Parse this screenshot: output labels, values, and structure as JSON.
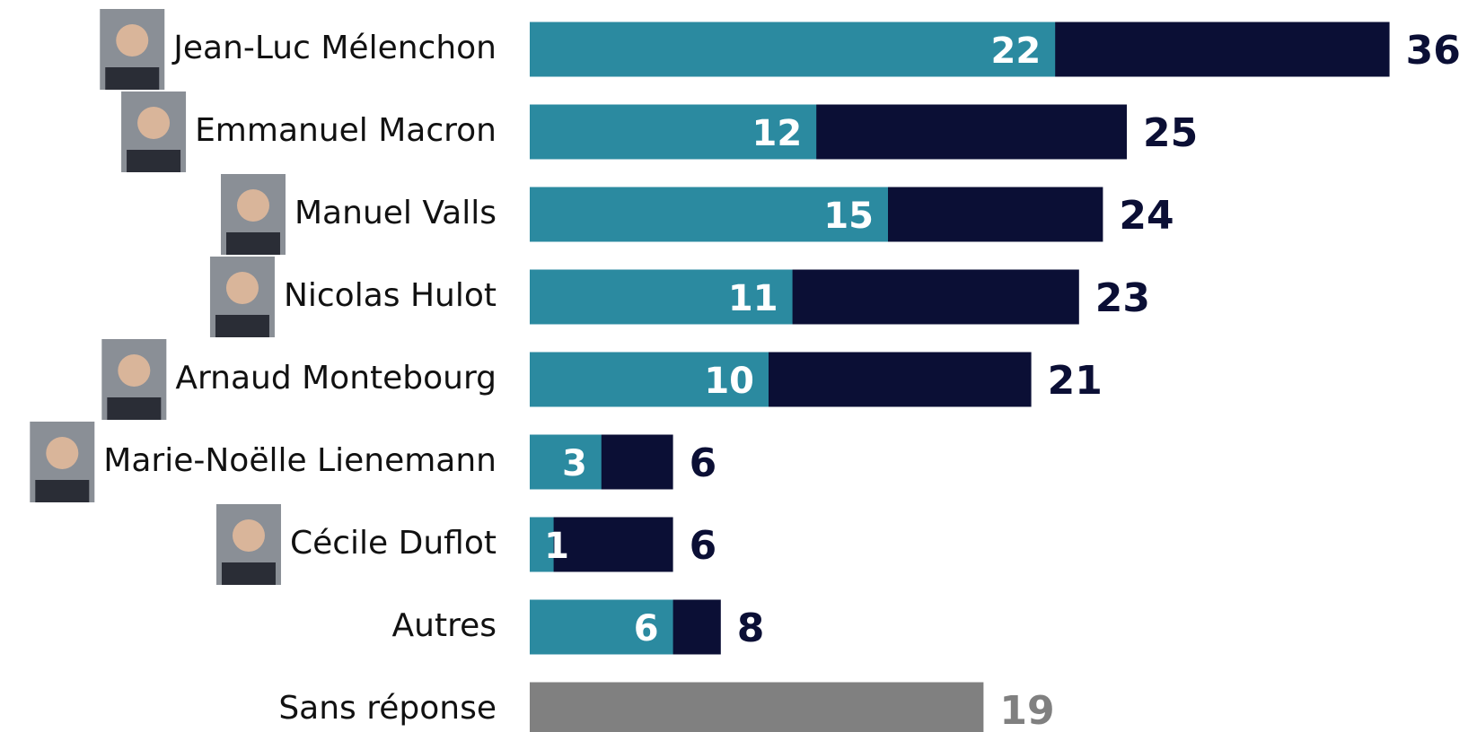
{
  "chart_data": {
    "type": "bar",
    "categories": [
      "Jean-Luc Mélenchon",
      "Emmanuel Macron",
      "Manuel Valls",
      "Nicolas Hulot",
      "Arnaud Montebourg",
      "Marie-Noëlle Lienemann",
      "Cécile Duflot",
      "Autres",
      "Sans réponse"
    ],
    "series": [
      {
        "colors": [
          "#0b0f35",
          "#0b0f35",
          "#0b0f35",
          "#0b0f35",
          "#0b0f35",
          "#0b0f35",
          "#0b0f35",
          "#0b0f35",
          "#808080"
        ],
        "values": [
          36,
          25,
          24,
          23,
          21,
          6,
          6,
          8,
          19
        ]
      },
      {
        "color": "#2b8aa0",
        "values": [
          22,
          12,
          15,
          11,
          10,
          3,
          1,
          6,
          null
        ]
      }
    ],
    "photos": [
      true,
      true,
      true,
      true,
      true,
      true,
      true,
      false,
      false
    ]
  }
}
